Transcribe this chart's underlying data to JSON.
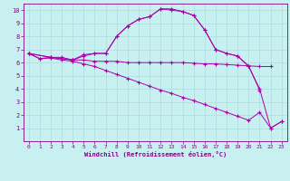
{
  "xlabel": "Windchill (Refroidissement éolien,°C)",
  "bg_color": "#c8f0f0",
  "line_color": "#aa00aa",
  "grid_color": "#aadddd",
  "xlim": [
    -0.5,
    23.5
  ],
  "ylim": [
    0,
    10.5
  ],
  "xticks": [
    0,
    1,
    2,
    3,
    4,
    5,
    6,
    7,
    8,
    9,
    10,
    11,
    12,
    13,
    14,
    15,
    16,
    17,
    18,
    19,
    20,
    21,
    22,
    23
  ],
  "yticks": [
    1,
    2,
    3,
    4,
    5,
    6,
    7,
    8,
    9,
    10
  ],
  "line1_x": [
    0,
    1,
    2,
    3,
    4,
    5,
    6,
    7,
    8,
    9,
    10,
    11,
    12,
    13,
    14,
    15,
    16,
    17,
    18,
    19,
    20,
    21,
    22
  ],
  "line1_y": [
    6.7,
    6.3,
    6.4,
    6.4,
    6.2,
    6.2,
    6.1,
    6.1,
    6.1,
    6.0,
    6.0,
    6.0,
    6.0,
    6.0,
    6.0,
    5.95,
    5.9,
    5.9,
    5.85,
    5.8,
    5.75,
    5.7,
    5.7
  ],
  "line2_x": [
    0,
    1,
    2,
    3,
    4,
    5,
    6,
    7,
    8,
    9,
    10,
    11,
    12,
    13,
    14,
    15,
    16,
    17,
    18,
    19,
    20,
    21,
    22,
    23
  ],
  "line2_y": [
    6.7,
    6.3,
    6.35,
    6.2,
    6.1,
    5.9,
    5.7,
    5.4,
    5.1,
    4.8,
    4.5,
    4.2,
    3.9,
    3.65,
    3.35,
    3.1,
    2.8,
    2.5,
    2.2,
    1.9,
    1.6,
    2.2,
    1.0,
    1.5
  ],
  "line3_x": [
    0,
    2,
    4,
    5,
    6,
    7,
    8,
    9,
    10,
    11,
    12,
    13,
    14,
    15,
    16,
    17,
    18,
    19,
    20,
    21,
    22,
    23
  ],
  "line3_y": [
    6.7,
    6.4,
    6.2,
    6.5,
    6.7,
    6.7,
    8.0,
    8.8,
    9.3,
    9.5,
    10.1,
    10.1,
    9.9,
    9.6,
    8.5,
    7.0,
    6.7,
    6.5,
    5.7,
    4.0,
    1.0,
    1.5
  ],
  "line4_x": [
    0,
    2,
    4,
    5,
    6,
    7,
    8,
    9,
    10,
    11,
    12,
    13,
    14,
    15,
    16,
    17,
    18,
    19,
    20,
    21
  ],
  "line4_y": [
    6.7,
    6.4,
    6.2,
    6.6,
    6.7,
    6.7,
    8.0,
    8.8,
    9.3,
    9.5,
    10.1,
    10.0,
    9.9,
    9.6,
    8.5,
    7.0,
    6.7,
    6.5,
    5.75,
    3.9
  ],
  "tick_color": "#880088",
  "spine_color": "#880088"
}
